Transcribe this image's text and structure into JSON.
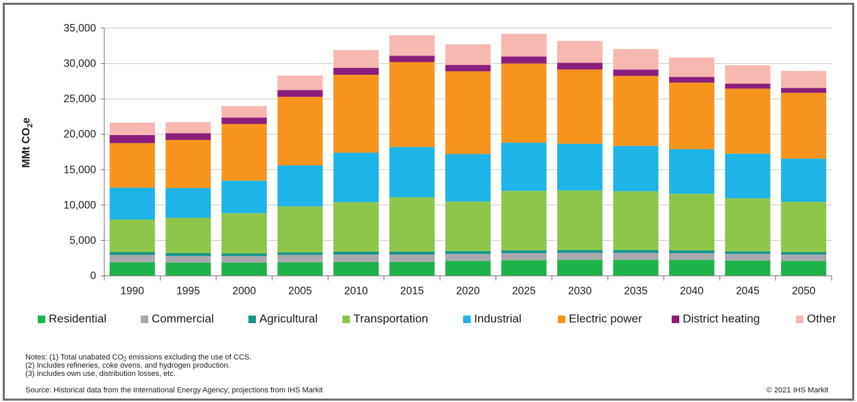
{
  "chart_data": {
    "type": "bar",
    "stacked": true,
    "categories": [
      "1990",
      "1995",
      "2000",
      "2005",
      "2010",
      "2015",
      "2020",
      "2025",
      "2030",
      "2035",
      "2040",
      "2045",
      "2050"
    ],
    "ylabel": "MMt CO2e",
    "ylim": [
      0,
      35000
    ],
    "yticks": [
      "0",
      "5,000",
      "10,000",
      "15,000",
      "20,000",
      "25,000",
      "30,000",
      "35,000"
    ],
    "ytick_values": [
      0,
      5000,
      10000,
      15000,
      20000,
      25000,
      30000,
      35000
    ],
    "grid": true,
    "legend_position": "bottom",
    "series": [
      {
        "name": "Residential",
        "color": "#1fb24a",
        "values": [
          1900,
          1850,
          1850,
          1900,
          1950,
          1950,
          2100,
          2200,
          2250,
          2250,
          2250,
          2150,
          2100
        ]
      },
      {
        "name": "Commercial",
        "color": "#a7a9ac",
        "values": [
          1050,
          950,
          950,
          1050,
          1050,
          1050,
          1000,
          1000,
          1000,
          1000,
          950,
          950,
          900
        ]
      },
      {
        "name": "Agricultural",
        "color": "#17958c",
        "values": [
          400,
          400,
          350,
          350,
          400,
          400,
          400,
          400,
          400,
          400,
          400,
          350,
          350
        ]
      },
      {
        "name": "Transportation",
        "color": "#8dc64b",
        "values": [
          4600,
          5000,
          5700,
          6500,
          7000,
          7700,
          7000,
          8400,
          8400,
          8300,
          8000,
          7500,
          7100
        ]
      },
      {
        "name": "Industrial",
        "color": "#1eb4e8",
        "values": [
          4500,
          4200,
          4600,
          5800,
          7000,
          7100,
          6700,
          6800,
          6600,
          6400,
          6300,
          6300,
          6100
        ]
      },
      {
        "name": "Electric power",
        "color": "#f7941e",
        "values": [
          6300,
          6800,
          8000,
          9700,
          11000,
          12000,
          11700,
          11200,
          10500,
          9900,
          9400,
          9200,
          9300
        ]
      },
      {
        "name": "District heating",
        "color": "#8b1f7c",
        "values": [
          1150,
          950,
          900,
          950,
          1000,
          900,
          900,
          1000,
          950,
          900,
          800,
          700,
          700
        ]
      },
      {
        "name": "Other",
        "color": "#f6b8b1",
        "values": [
          1750,
          1550,
          1650,
          2050,
          2500,
          2900,
          2900,
          3200,
          3100,
          2900,
          2750,
          2600,
          2400
        ]
      }
    ]
  },
  "notes": {
    "line1_pre": "Notes: (1) Total unabated CO",
    "line1_sub": "2",
    "line1_post": " emissions excluding the use of CCS.",
    "line2": "(2) Includes refineries, coke ovens, and hydrogen production.",
    "line3": "(3) Includes own use, distribution losses, etc."
  },
  "footer": {
    "source": "Source: Historical data from the International Energy Agency; projections from IHS Markit",
    "copyright": "© 2021 IHS Markit"
  },
  "colors": {
    "frame": "#6d6e71",
    "axis": "#6d6e71",
    "grid": "#c8c8c8"
  }
}
